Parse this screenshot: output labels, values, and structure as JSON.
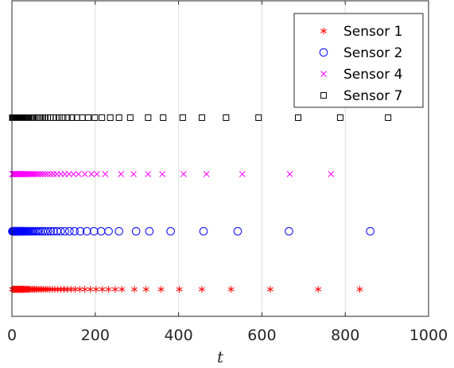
{
  "chart_data": {
    "type": "scatter",
    "title": "",
    "xlabel": "t",
    "ylabel": "",
    "xlim": [
      0,
      1000
    ],
    "x_ticks": [
      "0",
      "200",
      "400",
      "600",
      "800",
      "1000"
    ],
    "grid": "vertical",
    "legend_position": "top-right",
    "series": [
      {
        "name": "Sensor 1",
        "marker": "asterisk",
        "color": "#ff0000",
        "x": [
          1,
          2,
          3,
          4,
          5,
          6,
          7,
          8,
          9,
          10,
          11,
          12,
          13,
          14,
          15,
          16,
          17,
          18,
          19,
          20,
          21,
          22,
          23,
          24,
          25,
          26,
          27,
          28,
          29,
          30,
          32,
          34,
          36,
          38,
          40,
          42,
          45,
          48,
          51,
          54,
          57,
          60,
          64,
          68,
          72,
          76,
          81,
          86,
          91,
          97,
          103,
          110,
          117,
          125,
          133,
          142,
          152,
          163,
          175,
          188,
          202,
          217,
          232,
          248,
          264,
          294,
          322,
          358,
          402,
          456,
          526,
          620,
          735,
          835
        ]
      },
      {
        "name": "Sensor 2",
        "marker": "circle",
        "color": "#0000ff",
        "x": [
          1,
          2,
          3,
          4,
          5,
          6,
          7,
          8,
          9,
          10,
          11,
          12,
          13,
          14,
          15,
          16,
          17,
          18,
          19,
          20,
          21,
          22,
          23,
          24,
          25,
          27,
          29,
          31,
          33,
          35,
          37,
          40,
          43,
          46,
          49,
          52,
          56,
          60,
          64,
          69,
          74,
          80,
          86,
          93,
          100,
          108,
          117,
          127,
          138,
          150,
          164,
          180,
          197,
          214,
          232,
          257,
          298,
          330,
          381,
          460,
          542,
          665,
          860
        ]
      },
      {
        "name": "Sensor 4",
        "marker": "x",
        "color": "#ff00ff",
        "x": [
          1,
          2,
          3,
          4,
          5,
          6,
          7,
          8,
          9,
          10,
          11,
          12,
          13,
          14,
          15,
          16,
          17,
          18,
          19,
          20,
          21,
          22,
          23,
          24,
          25,
          27,
          29,
          31,
          33,
          35,
          37,
          40,
          43,
          46,
          49,
          52,
          56,
          60,
          64,
          69,
          74,
          80,
          86,
          93,
          100,
          108,
          117,
          127,
          137,
          148,
          160,
          175,
          191,
          204,
          224,
          262,
          292,
          327,
          361,
          412,
          467,
          553,
          667,
          766
        ]
      },
      {
        "name": "Sensor 7",
        "marker": "square",
        "color": "#000000",
        "x": [
          1,
          2,
          3,
          4,
          5,
          6,
          7,
          8,
          9,
          10,
          11,
          12,
          13,
          14,
          15,
          16,
          17,
          18,
          19,
          20,
          21,
          22,
          23,
          24,
          25,
          27,
          29,
          31,
          33,
          35,
          37,
          40,
          43,
          46,
          49,
          52,
          56,
          60,
          64,
          69,
          74,
          80,
          86,
          92,
          99,
          106,
          114,
          123,
          133,
          144,
          156,
          169,
          183,
          199,
          216,
          236,
          257,
          284,
          327,
          363,
          410,
          456,
          514,
          592,
          687,
          788,
          903
        ]
      }
    ]
  }
}
